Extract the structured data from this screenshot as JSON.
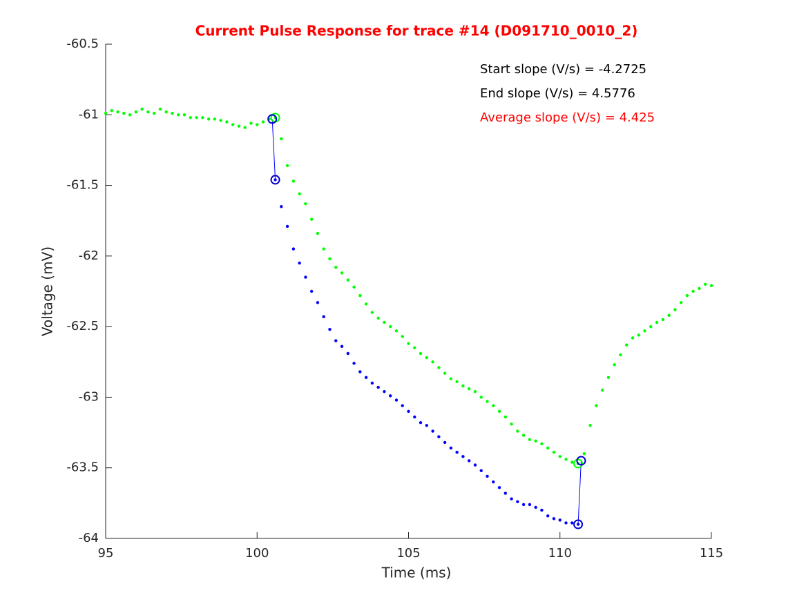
{
  "chart_data": {
    "type": "scatter",
    "title": "Current Pulse Response for trace #14 (D091710_0010_2)",
    "x_label": "Time (ms)",
    "y_label": "Voltage (mV)",
    "xlim": [
      95,
      115
    ],
    "xticks": [
      95,
      100,
      105,
      110,
      115
    ],
    "ylim": [
      -64,
      -60.5
    ],
    "yticks": [
      -60.5,
      -61,
      -61.5,
      -62,
      -62.5,
      -63,
      -63.5,
      -64
    ],
    "grid": false,
    "annotations": [
      {
        "text": "Start slope (V/s) = -4.2725",
        "color": "#000000"
      },
      {
        "text": "End slope (V/s) = 4.5776",
        "color": "#000000"
      },
      {
        "text": "Average slope (V/s) = 4.425",
        "color": "#ff0000"
      }
    ],
    "series": [
      {
        "color": "#00ff00",
        "marker": "dot",
        "x": [
          95.0,
          95.2,
          95.4,
          95.6,
          95.8,
          96.0,
          96.2,
          96.4,
          96.6,
          96.8,
          97.0,
          97.2,
          97.4,
          97.6,
          97.8,
          98.0,
          98.2,
          98.4,
          98.6,
          98.8,
          99.0,
          99.2,
          99.4,
          99.6,
          99.8,
          100.0,
          100.2,
          100.4,
          100.6,
          100.8,
          101.0,
          101.2,
          101.4,
          101.6,
          101.8,
          102.0,
          102.2,
          102.4,
          102.6,
          102.8,
          103.0,
          103.2,
          103.4,
          103.6,
          103.8,
          104.0,
          104.2,
          104.4,
          104.6,
          104.8,
          105.0,
          105.2,
          105.4,
          105.6,
          105.8,
          106.0,
          106.2,
          106.4,
          106.6,
          106.8,
          107.0,
          107.2,
          107.4,
          107.6,
          107.8,
          108.0,
          108.2,
          108.4,
          108.6,
          108.8,
          109.0,
          109.2,
          109.4,
          109.6,
          109.8,
          110.0,
          110.2,
          110.4,
          110.6,
          110.8,
          111.0,
          111.2,
          111.4,
          111.6,
          111.8,
          112.0,
          112.2,
          112.4,
          112.6,
          112.8,
          113.0,
          113.2,
          113.4,
          113.6,
          113.8,
          114.0,
          114.2,
          114.4,
          114.6,
          114.8,
          115.0
        ],
        "values": [
          -60.99,
          -60.97,
          -60.98,
          -60.99,
          -61.0,
          -60.98,
          -60.96,
          -60.98,
          -60.99,
          -60.96,
          -60.98,
          -60.99,
          -61.0,
          -61.0,
          -61.02,
          -61.02,
          -61.02,
          -61.03,
          -61.03,
          -61.04,
          -61.05,
          -61.07,
          -61.08,
          -61.09,
          -61.06,
          -61.07,
          -61.05,
          -61.03,
          -61.02,
          -61.17,
          -61.36,
          -61.47,
          -61.56,
          -61.63,
          -61.74,
          -61.84,
          -61.95,
          -62.02,
          -62.08,
          -62.12,
          -62.17,
          -62.22,
          -62.28,
          -62.34,
          -62.4,
          -62.44,
          -62.47,
          -62.5,
          -62.53,
          -62.57,
          -62.62,
          -62.65,
          -62.69,
          -62.72,
          -62.75,
          -62.79,
          -62.83,
          -62.87,
          -62.89,
          -62.92,
          -62.94,
          -62.96,
          -63.0,
          -63.03,
          -63.06,
          -63.1,
          -63.14,
          -63.19,
          -63.24,
          -63.27,
          -63.3,
          -63.31,
          -63.33,
          -63.36,
          -63.39,
          -63.42,
          -63.44,
          -63.46,
          -63.47,
          -63.4,
          -63.2,
          -63.06,
          -62.95,
          -62.86,
          -62.77,
          -62.7,
          -62.63,
          -62.58,
          -62.56,
          -62.53,
          -62.5,
          -62.47,
          -62.45,
          -62.42,
          -62.38,
          -62.33,
          -62.28,
          -62.25,
          -62.23,
          -62.2,
          -62.21
        ]
      },
      {
        "color": "#0000ff",
        "marker": "dot",
        "x": [
          100.6,
          100.8,
          101.0,
          101.2,
          101.4,
          101.6,
          101.8,
          102.0,
          102.2,
          102.4,
          102.6,
          102.8,
          103.0,
          103.2,
          103.4,
          103.6,
          103.8,
          104.0,
          104.2,
          104.4,
          104.6,
          104.8,
          105.0,
          105.2,
          105.4,
          105.6,
          105.8,
          106.0,
          106.2,
          106.4,
          106.6,
          106.8,
          107.0,
          107.2,
          107.4,
          107.6,
          107.8,
          108.0,
          108.2,
          108.4,
          108.6,
          108.8,
          109.0,
          109.2,
          109.4,
          109.6,
          109.8,
          110.0,
          110.2,
          110.4,
          110.6
        ],
        "values": [
          -61.46,
          -61.65,
          -61.79,
          -61.95,
          -62.05,
          -62.15,
          -62.25,
          -62.33,
          -62.43,
          -62.52,
          -62.6,
          -62.64,
          -62.69,
          -62.76,
          -62.82,
          -62.86,
          -62.9,
          -62.93,
          -62.96,
          -62.99,
          -63.02,
          -63.06,
          -63.1,
          -63.14,
          -63.18,
          -63.2,
          -63.24,
          -63.28,
          -63.32,
          -63.36,
          -63.39,
          -63.42,
          -63.45,
          -63.48,
          -63.52,
          -63.56,
          -63.6,
          -63.64,
          -63.68,
          -63.72,
          -63.74,
          -63.76,
          -63.76,
          -63.78,
          -63.8,
          -63.84,
          -63.86,
          -63.87,
          -63.89,
          -63.89,
          -63.9
        ]
      },
      {
        "color": "#0000ff",
        "marker": "line",
        "x": [
          100.5,
          100.6
        ],
        "values": [
          -61.03,
          -61.46
        ]
      },
      {
        "color": "#0000ff",
        "marker": "line",
        "x": [
          110.6,
          110.7
        ],
        "values": [
          -63.9,
          -63.45
        ]
      },
      {
        "color": "#00ff00",
        "marker": "circle",
        "x": [
          100.6,
          110.6
        ],
        "values": [
          -61.02,
          -63.47
        ]
      },
      {
        "color": "#0000cc",
        "marker": "circle",
        "x": [
          100.5,
          100.6,
          110.6,
          110.7
        ],
        "values": [
          -61.03,
          -61.46,
          -63.9,
          -63.45
        ]
      }
    ]
  }
}
